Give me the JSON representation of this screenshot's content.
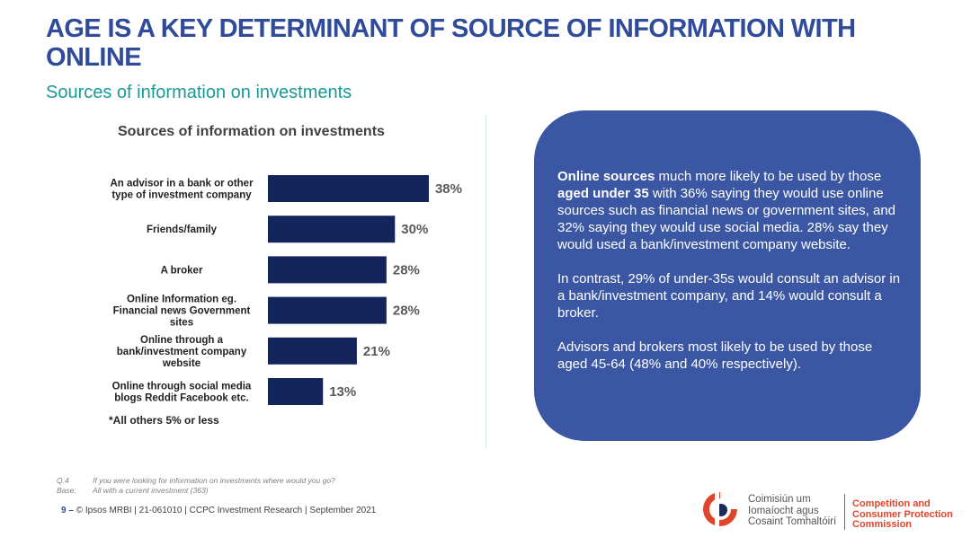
{
  "header": {
    "title": "AGE IS A KEY DETERMINANT OF SOURCE OF INFORMATION WITH ONLINE",
    "subtitle": "Sources of information on investments"
  },
  "chart_data": {
    "type": "bar",
    "orientation": "horizontal",
    "title": "Sources of information on investments",
    "categories": [
      [
        "An advisor in a bank or other",
        "type of investment company"
      ],
      [
        "Friends/family"
      ],
      [
        "A broker"
      ],
      [
        "Online Information eg.",
        "Financial news Government",
        "sites"
      ],
      [
        "Online through a",
        "bank/investment company",
        "website"
      ],
      [
        "Online through social media",
        "blogs Reddit Facebook etc."
      ]
    ],
    "values": [
      38,
      30,
      28,
      28,
      21,
      13
    ],
    "value_labels": [
      "38%",
      "30%",
      "28%",
      "28%",
      "21%",
      "13%"
    ],
    "xlim": [
      0,
      100
    ],
    "grid": false,
    "bar_color": "#13255a",
    "note": "*All others 5% or less"
  },
  "callout": {
    "p1_strong1": "Online sources",
    "p1_t1": " much more likely to be used by those ",
    "p1_strong2": "aged under 35",
    "p1_t2": " with 36% saying they would use online sources such as financial news or government sites, and 32% saying they would use social media. 28% say they would used a bank/investment company website.",
    "p2": "In contrast, 29% of under-35s would consult an advisor in a bank/investment company, and 14% would consult a broker.",
    "p3": "Advisors and brokers most likely to be used by those aged 45-64 (48% and 40% respectively)."
  },
  "footnotes": {
    "q_tag": "Q.4",
    "q_text": "If you were looking for information on investments where would you go?",
    "base_tag": "Base:",
    "base_text": "All with a current investment (363)"
  },
  "footer": {
    "page_number": "9",
    "dash": "–",
    "credit": "© Ipsos MRBI | 21-061010 | CCPC Investment Research | September 2021"
  },
  "logo": {
    "irish_line1": "Coimisiún um",
    "irish_line2": "Iomaíocht agus",
    "irish_line3": "Cosaint Tomhaltóirí",
    "english_line1": "Competition and",
    "english_line2": "Consumer Protection",
    "english_line3": "Commission",
    "colors": {
      "orange": "#e0452b",
      "navy": "#1c2b59"
    }
  }
}
